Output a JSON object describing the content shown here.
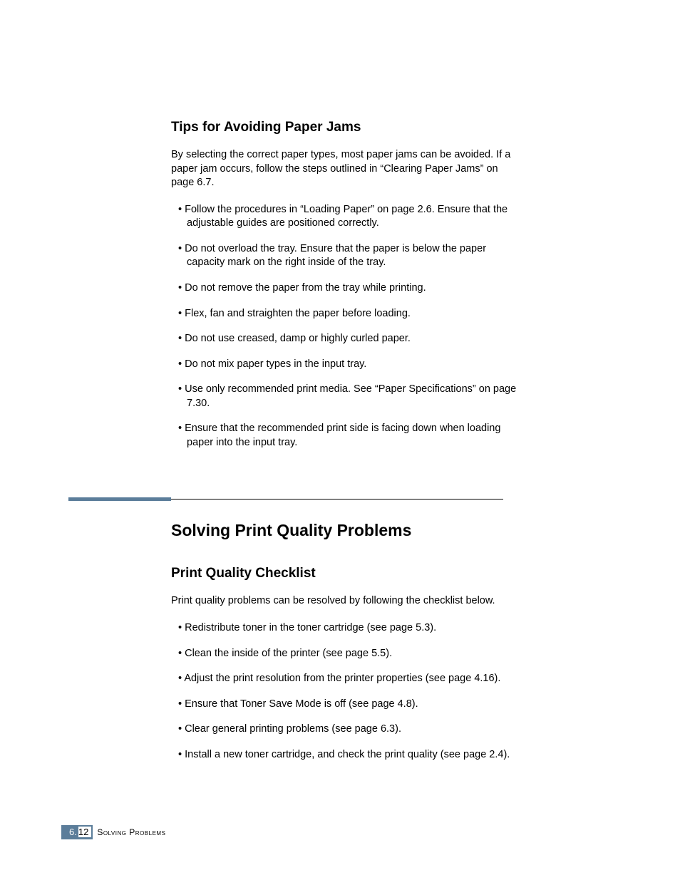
{
  "colors": {
    "accent": "#5b7d9a",
    "text": "#000000",
    "bg": "#ffffff"
  },
  "section1": {
    "heading": "Tips for Avoiding Paper Jams",
    "intro": "By selecting the correct paper types, most paper jams can be avoided. If a paper jam occurs, follow the steps outlined in “Clearing Paper Jams” on page 6.7.",
    "bullets": [
      "Follow the procedures in “Loading Paper” on page 2.6. Ensure that the adjustable guides are positioned correctly.",
      "Do not overload the tray. Ensure that the paper is below the paper capacity mark on the right inside of the tray.",
      "Do not remove the paper from the tray while printing.",
      "Flex, fan and straighten the paper before loading.",
      "Do not use creased, damp or highly curled paper.",
      "Do not mix paper types in the input tray.",
      "Use only recommended print media. See “Paper Specifications” on page 7.30.",
      "Ensure that the recommended print side is facing down when loading paper into the input tray."
    ]
  },
  "section2": {
    "title": "Solving Print Quality Problems",
    "heading": "Print Quality Checklist",
    "intro": "Print quality problems can be resolved by following the checklist below.",
    "bullets": [
      "Redistribute toner in the toner cartridge (see page 5.3).",
      "Clean the inside of the printer (see page 5.5).",
      "Adjust the print resolution from the printer properties (see page 4.16).",
      "Ensure that Toner Save Mode is off (see page 4.8).",
      "Clear general printing problems (see page 6.3).",
      "Install a new toner cartridge, and check the print quality (see page 2.4)."
    ]
  },
  "footer": {
    "chapter": "6.",
    "page": "12",
    "label": "Solving Problems"
  }
}
